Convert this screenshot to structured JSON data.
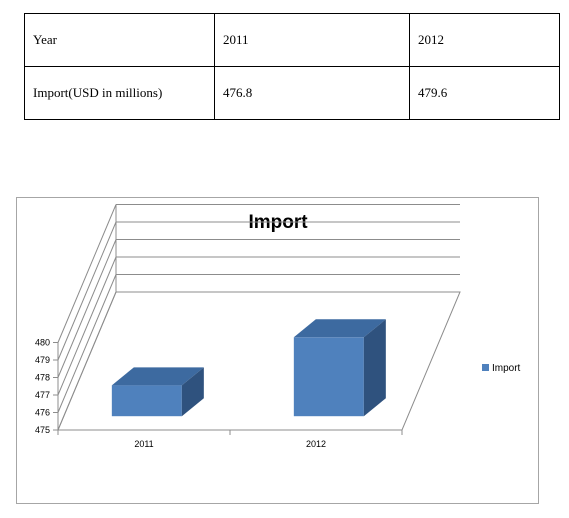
{
  "table": {
    "rows": [
      [
        "Year",
        "2011",
        "2012"
      ],
      [
        "Import(USD in millions)",
        "476.8",
        "479.6"
      ]
    ]
  },
  "chart_data": {
    "type": "bar",
    "title": "Import",
    "categories": [
      "2011",
      "2012"
    ],
    "series": [
      {
        "name": "Import",
        "values": [
          476.8,
          479.6
        ]
      }
    ],
    "ylim": [
      475,
      480
    ],
    "yticks": [
      "475",
      "476",
      "477",
      "478",
      "479",
      "480"
    ],
    "grid": true,
    "legend_position": "right",
    "style": "3d-column",
    "colors": {
      "front": "#4f81bd",
      "top": "#3d6aa0",
      "side": "#2f527e"
    }
  }
}
